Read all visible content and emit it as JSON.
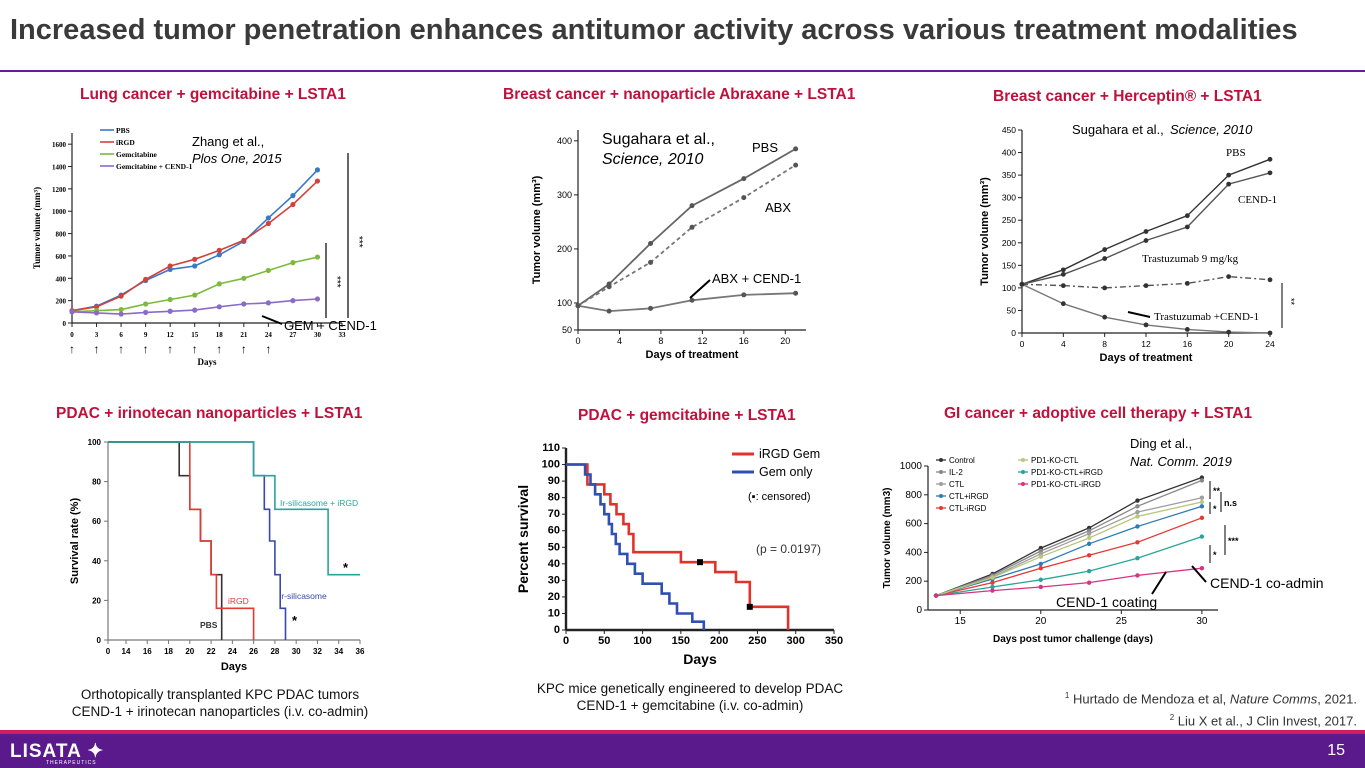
{
  "slide": {
    "title": "Increased tumor penetration enhances antitumor activity across various treatment modalities",
    "page_number": "15",
    "logo_text": "LISATA",
    "logo_sub": "THERAPEUTICS",
    "colors": {
      "accent": "#6a1b9a",
      "title_red": "#c0113c",
      "footer": "#5b1a8c"
    }
  },
  "panels": {
    "p1_title": "Lung cancer + gemcitabine + LSTA1",
    "p2_title": "Breast cancer + nanoparticle Abraxane + LSTA1",
    "p3_title": "Breast cancer + Herceptin® + LSTA1",
    "p4_title": "PDAC + irinotecan nanoparticles + LSTA1",
    "p5_title": "PDAC + gemcitabine + LSTA1",
    "p6_title": "GI cancer + adoptive cell therapy + LSTA1"
  },
  "captions": {
    "p4_line1": "Orthotopically transplanted KPC PDAC tumors",
    "p4_line2": "CEND-1 + irinotecan nanoparticles (i.v. co-admin)",
    "p5_line1": "KPC mice genetically engineered to develop PDAC",
    "p5_line2": "CEND-1 + gemcitabine (i.v. co-admin)"
  },
  "references": {
    "r1_num": "1",
    "r1_text": "Hurtado de Mendoza et al, ",
    "r1_journal": "Nature Comms",
    "r1_year": ", 2021.",
    "r2_num": "2",
    "r2_text": "Liu X et al., J Clin Invest, 2017."
  },
  "chart_data": [
    {
      "id": "p1",
      "type": "line",
      "citation_line1": "Zhang et al.,",
      "citation_line2": "Plos One, 2015",
      "xlabel": "Days",
      "ylabel": "Tumor volume (mm³)",
      "xlim": [
        0,
        33
      ],
      "ylim": [
        0,
        1700
      ],
      "xticks": [
        0,
        3,
        6,
        9,
        12,
        15,
        18,
        21,
        24,
        27,
        30,
        33
      ],
      "yticks": [
        0,
        200,
        400,
        600,
        800,
        1000,
        1200,
        1400,
        1600
      ],
      "annotation": "GEM + CEND-1",
      "sig1": "***",
      "sig2": "***",
      "dosing_days": [
        0,
        3,
        6,
        9,
        12,
        15,
        18,
        21,
        24
      ],
      "x": [
        0,
        3,
        6,
        9,
        12,
        15,
        18,
        21,
        24,
        27,
        30
      ],
      "series": [
        {
          "name": "PBS",
          "color": "#3a78c8",
          "values": [
            110,
            150,
            250,
            380,
            480,
            510,
            610,
            730,
            940,
            1140,
            1370
          ]
        },
        {
          "name": "iRGD",
          "color": "#d0433c",
          "values": [
            110,
            145,
            240,
            390,
            510,
            570,
            650,
            740,
            890,
            1060,
            1270
          ]
        },
        {
          "name": "Gemcitabine",
          "color": "#7cba3a",
          "values": [
            100,
            110,
            120,
            170,
            210,
            250,
            350,
            400,
            470,
            540,
            590
          ]
        },
        {
          "name": "Gemcitabine + CEND-1",
          "color": "#8a6cc8",
          "values": [
            100,
            90,
            80,
            95,
            105,
            115,
            145,
            170,
            180,
            200,
            215
          ]
        }
      ]
    },
    {
      "id": "p2",
      "type": "line",
      "citation_line1": "Sugahara et al.,",
      "citation_line2": "Science, 2010",
      "xlabel": "Days of treatment",
      "ylabel": "Tumor volume (mm³)",
      "xlim": [
        0,
        22
      ],
      "ylim": [
        50,
        420
      ],
      "xticks": [
        0,
        4,
        8,
        12,
        16,
        20
      ],
      "yticks": [
        50,
        100,
        200,
        300,
        400
      ],
      "x": [
        0,
        3,
        7,
        11,
        16,
        21
      ],
      "series": [
        {
          "name": "PBS",
          "color": "#666666",
          "dash": false,
          "values": [
            95,
            135,
            210,
            280,
            330,
            385
          ]
        },
        {
          "name": "ABX",
          "color": "#777777",
          "dash": true,
          "values": [
            95,
            130,
            175,
            240,
            295,
            355
          ]
        },
        {
          "name": "ABX + CEND-1",
          "color": "#777777",
          "dash": false,
          "values": [
            95,
            85,
            90,
            105,
            115,
            118
          ]
        }
      ]
    },
    {
      "id": "p3",
      "type": "line",
      "citation_line1": "Sugahara et al., ",
      "citation_line2": "Science, 2010",
      "xlabel": "Days of treatment",
      "ylabel": "Tumor volume (mm³)",
      "xlim": [
        0,
        24
      ],
      "ylim": [
        0,
        450
      ],
      "xticks": [
        0,
        4,
        8,
        12,
        16,
        20,
        24
      ],
      "yticks": [
        0,
        50,
        100,
        150,
        200,
        250,
        300,
        350,
        400,
        450
      ],
      "sig": "**",
      "x": [
        0,
        4,
        8,
        12,
        16,
        20,
        24
      ],
      "series": [
        {
          "name": "PBS",
          "color": "#333333",
          "dash": false,
          "values": [
            108,
            140,
            185,
            225,
            260,
            350,
            385
          ]
        },
        {
          "name": "CEND-1",
          "color": "#555555",
          "dash": false,
          "values": [
            108,
            130,
            165,
            205,
            235,
            330,
            355
          ]
        },
        {
          "name": "Trastuzumab 9 mg/kg",
          "color": "#555555",
          "dash": true,
          "values": [
            108,
            105,
            100,
            105,
            110,
            125,
            118
          ]
        },
        {
          "name": "Trastuzumab +CEND-1",
          "color": "#777777",
          "dash": false,
          "values": [
            108,
            65,
            35,
            18,
            8,
            2,
            0
          ]
        }
      ]
    },
    {
      "id": "p4",
      "type": "line",
      "xlabel": "Days",
      "ylabel": "Survival rate (%)",
      "xticks": [
        0,
        14,
        16,
        18,
        20,
        22,
        24,
        26,
        28,
        30,
        32,
        34,
        36
      ],
      "yticks": [
        0,
        20,
        40,
        60,
        80,
        100
      ],
      "ylim": [
        0,
        100
      ],
      "sig1": "*",
      "sig2": "*",
      "series": [
        {
          "name": "PBS",
          "color": "#333333",
          "values": [
            [
              0,
              100
            ],
            [
              19,
              100
            ],
            [
              19,
              83
            ],
            [
              20,
              83
            ],
            [
              20,
              66
            ],
            [
              21,
              66
            ],
            [
              21,
              50
            ],
            [
              22,
              50
            ],
            [
              22,
              33
            ],
            [
              23,
              33
            ],
            [
              23,
              0
            ]
          ]
        },
        {
          "name": "iRGD",
          "color": "#e53935",
          "values": [
            [
              0,
              100
            ],
            [
              20,
              100
            ],
            [
              20,
              66
            ],
            [
              21,
              66
            ],
            [
              21,
              50
            ],
            [
              22,
              50
            ],
            [
              22,
              33
            ],
            [
              22.5,
              33
            ],
            [
              22.5,
              16
            ],
            [
              26,
              16
            ],
            [
              26,
              0
            ]
          ]
        },
        {
          "name": "Ir-silicasome",
          "color": "#3949ab",
          "values": [
            [
              0,
              100
            ],
            [
              26,
              100
            ],
            [
              26,
              83
            ],
            [
              27,
              83
            ],
            [
              27,
              66
            ],
            [
              27.5,
              66
            ],
            [
              27.5,
              50
            ],
            [
              28,
              50
            ],
            [
              28,
              33
            ],
            [
              28.5,
              33
            ],
            [
              28.5,
              16
            ],
            [
              29,
              16
            ],
            [
              29,
              0
            ]
          ]
        },
        {
          "name": "Ir-silicasome + iRGD",
          "color": "#26a69a",
          "values": [
            [
              0,
              100
            ],
            [
              26,
              100
            ],
            [
              26,
              83
            ],
            [
              28,
              83
            ],
            [
              28,
              66
            ],
            [
              33,
              66
            ],
            [
              33,
              33
            ],
            [
              36,
              33
            ]
          ]
        }
      ]
    },
    {
      "id": "p5",
      "type": "line",
      "xlabel": "Days",
      "ylabel": "Percent survival",
      "xlim": [
        0,
        350
      ],
      "ylim": [
        0,
        110
      ],
      "xticks": [
        0,
        50,
        100,
        150,
        200,
        250,
        300,
        350
      ],
      "yticks": [
        0,
        10,
        20,
        30,
        40,
        50,
        60,
        70,
        80,
        90,
        100,
        110
      ],
      "legend_censored": "(▪: censored)",
      "pvalue": "(p = 0.0197)",
      "series": [
        {
          "name": "iRGD  Gem",
          "color": "#e0332c",
          "values": [
            [
              0,
              100
            ],
            [
              28,
              100
            ],
            [
              28,
              88
            ],
            [
              50,
              88
            ],
            [
              50,
              82
            ],
            [
              58,
              82
            ],
            [
              58,
              76
            ],
            [
              66,
              76
            ],
            [
              66,
              70
            ],
            [
              75,
              70
            ],
            [
              75,
              64
            ],
            [
              82,
              64
            ],
            [
              82,
              58
            ],
            [
              88,
              58
            ],
            [
              88,
              47
            ],
            [
              150,
              47
            ],
            [
              150,
              41
            ],
            [
              195,
              41
            ],
            [
              195,
              35
            ],
            [
              222,
              35
            ],
            [
              222,
              29
            ],
            [
              240,
              29
            ],
            [
              240,
              14
            ],
            [
              290,
              14
            ],
            [
              290,
              0
            ]
          ]
        },
        {
          "name": "Gem only",
          "color": "#2f4fb3",
          "values": [
            [
              0,
              100
            ],
            [
              25,
              100
            ],
            [
              25,
              94
            ],
            [
              32,
              94
            ],
            [
              32,
              88
            ],
            [
              38,
              88
            ],
            [
              38,
              82
            ],
            [
              45,
              82
            ],
            [
              45,
              76
            ],
            [
              50,
              76
            ],
            [
              50,
              70
            ],
            [
              56,
              70
            ],
            [
              56,
              64
            ],
            [
              60,
              64
            ],
            [
              60,
              58
            ],
            [
              65,
              58
            ],
            [
              65,
              52
            ],
            [
              70,
              52
            ],
            [
              70,
              46
            ],
            [
              80,
              46
            ],
            [
              80,
              40
            ],
            [
              90,
              40
            ],
            [
              90,
              34
            ],
            [
              100,
              34
            ],
            [
              100,
              28
            ],
            [
              125,
              28
            ],
            [
              125,
              22
            ],
            [
              135,
              22
            ],
            [
              135,
              16
            ],
            [
              145,
              16
            ],
            [
              145,
              10
            ],
            [
              165,
              10
            ],
            [
              165,
              5
            ],
            [
              180,
              5
            ],
            [
              180,
              0
            ]
          ]
        }
      ]
    },
    {
      "id": "p6",
      "type": "line",
      "citation_line1": "Ding et al.,",
      "citation_line2": "Nat. Comm. 2019",
      "xlabel": "Days post tumor challenge (days)",
      "ylabel": "Tumor volume (mm3)",
      "xlim": [
        13,
        31
      ],
      "ylim": [
        0,
        1000
      ],
      "xticks": [
        15,
        20,
        25,
        30
      ],
      "yticks": [
        0,
        200,
        400,
        600,
        800,
        1000
      ],
      "annotation1": "CEND-1 co-admin",
      "annotation2": "CEND-1 coating",
      "sig_labels": [
        "**",
        "*",
        "n.s",
        "*",
        "***"
      ],
      "x": [
        13.5,
        17,
        20,
        23,
        26,
        30
      ],
      "series": [
        {
          "name": "Control",
          "color": "#333333",
          "values": [
            100,
            250,
            430,
            570,
            760,
            920
          ]
        },
        {
          "name": "IL-2",
          "color": "#888888",
          "values": [
            100,
            240,
            410,
            550,
            720,
            900
          ]
        },
        {
          "name": "CTL",
          "color": "#9e9e9e",
          "values": [
            100,
            230,
            390,
            530,
            680,
            780
          ]
        },
        {
          "name": "CTL+iRGD",
          "color": "#2e7bb5",
          "values": [
            100,
            215,
            320,
            460,
            580,
            720
          ]
        },
        {
          "name": "CTL-iRGD",
          "color": "#e53935",
          "values": [
            100,
            190,
            290,
            380,
            470,
            640
          ]
        },
        {
          "name": "PD1-KO-CTL",
          "color": "#b7c77b",
          "values": [
            100,
            225,
            370,
            500,
            650,
            750
          ]
        },
        {
          "name": "PD1-KO-CTL+iRGD",
          "color": "#26a69a",
          "values": [
            100,
            160,
            210,
            270,
            360,
            510
          ]
        },
        {
          "name": "PD1-KO-CTL-iRGD",
          "color": "#d63384",
          "values": [
            100,
            135,
            160,
            190,
            240,
            290
          ]
        }
      ]
    }
  ]
}
